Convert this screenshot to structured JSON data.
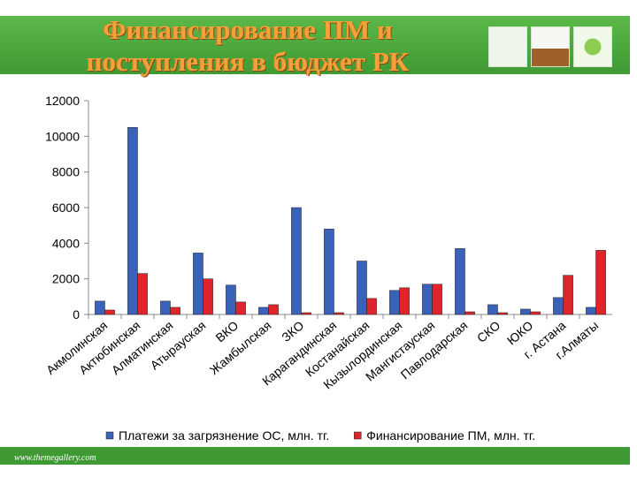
{
  "chart_data": {
    "type": "bar",
    "title": "Финансирование ПМ и поступления в бюджет РК",
    "categories": [
      "Акмолинская",
      "Актюбинская",
      "Алматинская",
      "Атырауская",
      "ВКО",
      "Жамбылская",
      "ЗКО",
      "Карагандинская",
      "Костанайская",
      "Кызылординская",
      "Мангистауская",
      "Павлодарская",
      "СКО",
      "ЮКО",
      "г. Астана",
      "г.Алматы"
    ],
    "series": [
      {
        "name": "Платежи за загрязнение ОС, млн. тг.",
        "color": "#3a62b8",
        "values": [
          750,
          10500,
          750,
          3450,
          1650,
          400,
          6000,
          4800,
          3000,
          1350,
          1700,
          3700,
          550,
          300,
          950,
          400
        ]
      },
      {
        "name": "Финансирование ПМ, млн. тг.",
        "color": "#e0242c",
        "values": [
          250,
          2300,
          400,
          2000,
          700,
          550,
          100,
          100,
          900,
          1500,
          1700,
          150,
          100,
          150,
          2200,
          3600
        ]
      }
    ],
    "ylim": [
      0,
      12000
    ],
    "yticks": [
      0,
      2000,
      4000,
      6000,
      8000,
      10000,
      12000
    ],
    "grid": false,
    "legend": "bottom"
  },
  "footer": "www.themegallery.com"
}
